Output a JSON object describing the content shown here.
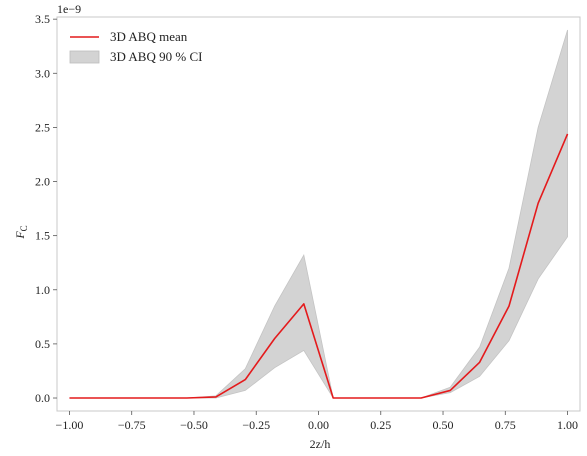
{
  "chart_data": {
    "type": "line",
    "title": "",
    "xlabel": "2z/h",
    "ylabel": "F",
    "ylabel_sub": "C",
    "y_scale_label": "1e−9",
    "xlim": [
      -1.05,
      1.05
    ],
    "ylim": [
      -0.12,
      3.52
    ],
    "grid": false,
    "legend_position": "top-left",
    "x_ticks": [
      -1.0,
      -0.75,
      -0.5,
      -0.25,
      0.0,
      0.25,
      0.5,
      0.75,
      1.0
    ],
    "x_tick_labels": [
      "−1.00",
      "−0.75",
      "−0.50",
      "−0.25",
      "0.00",
      "0.25",
      "0.50",
      "0.75",
      "1.00"
    ],
    "y_ticks": [
      0.0,
      0.5,
      1.0,
      1.5,
      2.0,
      2.5,
      3.0,
      3.5
    ],
    "y_tick_labels": [
      "0.0",
      "0.5",
      "1.0",
      "1.5",
      "2.0",
      "2.5",
      "3.0",
      "3.5"
    ],
    "x": [
      -1.0,
      -0.882,
      -0.765,
      -0.647,
      -0.529,
      -0.412,
      -0.294,
      -0.176,
      -0.059,
      0.059,
      0.176,
      0.294,
      0.412,
      0.529,
      0.647,
      0.765,
      0.882,
      1.0
    ],
    "series": [
      {
        "name": "3D ABQ mean",
        "color": "#e41a1c",
        "values": [
          0,
          0,
          0,
          0,
          0,
          0.01,
          0.17,
          0.55,
          0.87,
          0,
          0,
          0,
          0,
          0.07,
          0.33,
          0.85,
          1.8,
          2.44
        ]
      }
    ],
    "ci": {
      "name": "3D ABQ 90 % CI",
      "color": "#d3d3d3",
      "lower": [
        0,
        0,
        0,
        0,
        0,
        0,
        0.07,
        0.28,
        0.44,
        0,
        0,
        0,
        0,
        0.05,
        0.2,
        0.53,
        1.1,
        1.49
      ],
      "upper": [
        0,
        0,
        0,
        0,
        0,
        0.02,
        0.27,
        0.85,
        1.32,
        0,
        0,
        0,
        0,
        0.1,
        0.47,
        1.2,
        2.5,
        3.4
      ]
    }
  }
}
